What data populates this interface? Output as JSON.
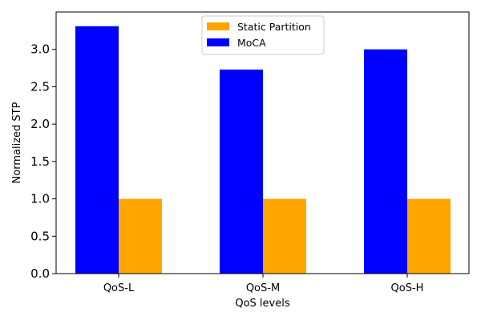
{
  "chart_data": {
    "type": "bar",
    "title": "",
    "xlabel": "QoS levels",
    "ylabel": "Normalized STP",
    "categories": [
      "QoS-L",
      "QoS-M",
      "QoS-H"
    ],
    "series": [
      {
        "name": "MoCA",
        "values": [
          3.31,
          2.73,
          3.0
        ],
        "color": "#0000ff"
      },
      {
        "name": "Static Partition",
        "values": [
          1.0,
          1.0,
          1.0
        ],
        "color": "#ffa500"
      }
    ],
    "ylim": [
      0,
      3.5
    ],
    "yticks": [
      "0.0",
      "0.5",
      "1.0",
      "1.5",
      "2.0",
      "2.5",
      "3.0"
    ],
    "ytick_values": [
      0,
      0.5,
      1.0,
      1.5,
      2.0,
      2.5,
      3.0
    ],
    "legend": {
      "placement": "upper-center",
      "entries": [
        {
          "label": "Static Partition",
          "color": "#ffa500"
        },
        {
          "label": "MoCA",
          "color": "#0000ff"
        }
      ]
    },
    "grid": false
  }
}
